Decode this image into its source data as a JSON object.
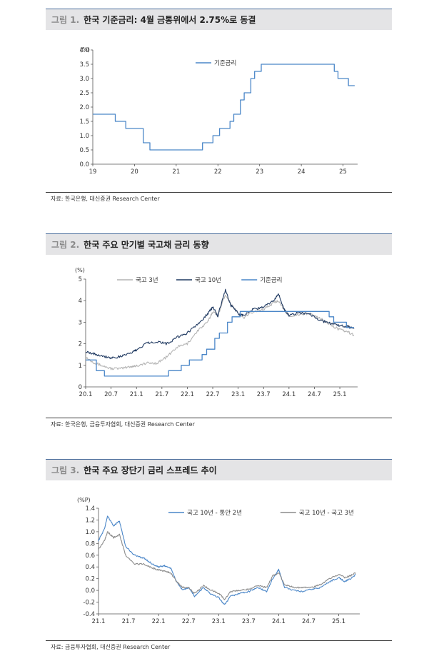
{
  "figures": [
    {
      "number": "그림 1.",
      "title": "한국 기준금리: 4월 금통위에서 2.75%로 동결",
      "source": "자료: 한국은행, 대신증권 Research Center"
    },
    {
      "number": "그림 2.",
      "title": "한국 주요 만기별 국고채 금리 동향",
      "source": "자료: 한국은행, 금융투자협회, 대신증권 Research Center"
    },
    {
      "number": "그림 3.",
      "title": "한국 주요 장단기 금리 스프레드 추이",
      "source": "자료: 금융투자협회, 대신증권 Research Center"
    }
  ],
  "chart_data": [
    {
      "type": "line",
      "unit": "(%)",
      "xlim": [
        19,
        25.35
      ],
      "ylim": [
        0,
        4
      ],
      "x_ticks": [
        "19",
        "20",
        "21",
        "22",
        "23",
        "24",
        "25"
      ],
      "y_ticks": [
        "0.0",
        "0.5",
        "1.0",
        "1.5",
        "2.0",
        "2.5",
        "3.0",
        "3.5",
        "4.0"
      ],
      "legend_position": "top-center",
      "series": [
        {
          "name": "기준금리",
          "color": "#4a86c8",
          "step": true,
          "points": [
            [
              19.0,
              1.75
            ],
            [
              19.54,
              1.5
            ],
            [
              19.79,
              1.25
            ],
            [
              20.21,
              0.75
            ],
            [
              20.37,
              0.5
            ],
            [
              21.63,
              0.75
            ],
            [
              21.88,
              1.0
            ],
            [
              22.04,
              1.25
            ],
            [
              22.29,
              1.5
            ],
            [
              22.38,
              1.75
            ],
            [
              22.54,
              2.25
            ],
            [
              22.63,
              2.5
            ],
            [
              22.79,
              3.0
            ],
            [
              22.88,
              3.25
            ],
            [
              23.04,
              3.5
            ],
            [
              24.79,
              3.25
            ],
            [
              24.88,
              3.0
            ],
            [
              25.13,
              2.75
            ],
            [
              25.28,
              2.75
            ]
          ]
        }
      ]
    },
    {
      "type": "line",
      "unit": "(%)",
      "xlim": [
        2020.0,
        2025.35
      ],
      "ylim": [
        0,
        5
      ],
      "x_ticks": [
        "20.1",
        "20.7",
        "21.1",
        "21.7",
        "22.1",
        "22.7",
        "23.1",
        "23.7",
        "24.1",
        "24.7",
        "25.1"
      ],
      "y_ticks": [
        "0",
        "1",
        "2",
        "3",
        "4",
        "5"
      ],
      "legend_position": "top",
      "series": [
        {
          "name": "국고 3년",
          "color": "#b4b4b4",
          "points": [
            [
              2020.0,
              1.38
            ],
            [
              2020.15,
              1.15
            ],
            [
              2020.3,
              1.0
            ],
            [
              2020.5,
              0.85
            ],
            [
              2020.7,
              0.85
            ],
            [
              2020.9,
              0.95
            ],
            [
              2021.0,
              0.98
            ],
            [
              2021.2,
              1.1
            ],
            [
              2021.4,
              1.1
            ],
            [
              2021.6,
              1.4
            ],
            [
              2021.8,
              1.85
            ],
            [
              2022.0,
              2.0
            ],
            [
              2022.2,
              2.6
            ],
            [
              2022.4,
              3.0
            ],
            [
              2022.5,
              3.5
            ],
            [
              2022.6,
              3.3
            ],
            [
              2022.75,
              4.3
            ],
            [
              2022.85,
              3.9
            ],
            [
              2023.0,
              3.4
            ],
            [
              2023.1,
              3.2
            ],
            [
              2023.3,
              3.5
            ],
            [
              2023.5,
              3.6
            ],
            [
              2023.7,
              3.9
            ],
            [
              2023.8,
              4.0
            ],
            [
              2023.9,
              3.6
            ],
            [
              2024.0,
              3.3
            ],
            [
              2024.2,
              3.35
            ],
            [
              2024.4,
              3.4
            ],
            [
              2024.6,
              3.2
            ],
            [
              2024.8,
              2.9
            ],
            [
              2025.0,
              2.65
            ],
            [
              2025.15,
              2.55
            ],
            [
              2025.28,
              2.4
            ]
          ]
        },
        {
          "name": "국고 10년",
          "color": "#1e3860",
          "points": [
            [
              2020.0,
              1.65
            ],
            [
              2020.15,
              1.55
            ],
            [
              2020.3,
              1.45
            ],
            [
              2020.5,
              1.35
            ],
            [
              2020.7,
              1.4
            ],
            [
              2020.9,
              1.6
            ],
            [
              2021.0,
              1.7
            ],
            [
              2021.2,
              2.05
            ],
            [
              2021.4,
              2.1
            ],
            [
              2021.6,
              2.0
            ],
            [
              2021.8,
              2.3
            ],
            [
              2022.0,
              2.5
            ],
            [
              2022.2,
              2.9
            ],
            [
              2022.4,
              3.4
            ],
            [
              2022.5,
              3.7
            ],
            [
              2022.6,
              3.3
            ],
            [
              2022.75,
              4.5
            ],
            [
              2022.85,
              3.8
            ],
            [
              2023.0,
              3.4
            ],
            [
              2023.1,
              3.3
            ],
            [
              2023.3,
              3.6
            ],
            [
              2023.5,
              3.7
            ],
            [
              2023.7,
              4.0
            ],
            [
              2023.8,
              4.3
            ],
            [
              2023.9,
              3.6
            ],
            [
              2024.0,
              3.3
            ],
            [
              2024.2,
              3.45
            ],
            [
              2024.4,
              3.4
            ],
            [
              2024.6,
              3.1
            ],
            [
              2024.8,
              2.95
            ],
            [
              2025.0,
              2.85
            ],
            [
              2025.15,
              2.8
            ],
            [
              2025.28,
              2.7
            ]
          ]
        },
        {
          "name": "기준금리",
          "color": "#4a86c8",
          "step": true,
          "points": [
            [
              2020.0,
              1.25
            ],
            [
              2020.21,
              0.75
            ],
            [
              2020.37,
              0.5
            ],
            [
              2021.63,
              0.75
            ],
            [
              2021.88,
              1.0
            ],
            [
              2022.04,
              1.25
            ],
            [
              2022.29,
              1.5
            ],
            [
              2022.38,
              1.75
            ],
            [
              2022.54,
              2.25
            ],
            [
              2022.63,
              2.5
            ],
            [
              2022.79,
              3.0
            ],
            [
              2022.88,
              3.25
            ],
            [
              2023.04,
              3.5
            ],
            [
              2024.79,
              3.25
            ],
            [
              2024.88,
              3.0
            ],
            [
              2025.13,
              2.75
            ],
            [
              2025.28,
              2.75
            ]
          ]
        }
      ]
    },
    {
      "type": "line",
      "unit": "(%P)",
      "xlim": [
        2021.0,
        2025.35
      ],
      "ylim": [
        -0.4,
        1.4
      ],
      "x_ticks": [
        "21.1",
        "21.7",
        "22.1",
        "22.7",
        "23.1",
        "23.7",
        "24.1",
        "24.7",
        "25.1"
      ],
      "y_ticks": [
        "-0.4",
        "-0.2",
        "0.0",
        "0.2",
        "0.4",
        "0.6",
        "0.8",
        "1.0",
        "1.2",
        "1.4"
      ],
      "legend_position": "top",
      "series": [
        {
          "name": "국고 10년 - 통안 2년",
          "color": "#4a86c8",
          "points": [
            [
              2021.0,
              0.85
            ],
            [
              2021.1,
              1.05
            ],
            [
              2021.15,
              1.27
            ],
            [
              2021.25,
              1.1
            ],
            [
              2021.35,
              1.18
            ],
            [
              2021.45,
              0.75
            ],
            [
              2021.6,
              0.6
            ],
            [
              2021.75,
              0.55
            ],
            [
              2021.9,
              0.45
            ],
            [
              2022.0,
              0.4
            ],
            [
              2022.1,
              0.42
            ],
            [
              2022.2,
              0.38
            ],
            [
              2022.3,
              0.15
            ],
            [
              2022.4,
              0.0
            ],
            [
              2022.5,
              0.05
            ],
            [
              2022.6,
              -0.1
            ],
            [
              2022.75,
              0.05
            ],
            [
              2022.85,
              -0.05
            ],
            [
              2023.0,
              -0.12
            ],
            [
              2023.1,
              -0.25
            ],
            [
              2023.2,
              -0.1
            ],
            [
              2023.35,
              -0.05
            ],
            [
              2023.5,
              -0.02
            ],
            [
              2023.65,
              0.05
            ],
            [
              2023.8,
              -0.02
            ],
            [
              2023.9,
              0.2
            ],
            [
              2024.0,
              0.35
            ],
            [
              2024.1,
              0.05
            ],
            [
              2024.25,
              0.0
            ],
            [
              2024.4,
              -0.02
            ],
            [
              2024.55,
              0.02
            ],
            [
              2024.7,
              0.05
            ],
            [
              2024.85,
              0.15
            ],
            [
              2025.0,
              0.22
            ],
            [
              2025.1,
              0.15
            ],
            [
              2025.2,
              0.2
            ],
            [
              2025.28,
              0.27
            ]
          ]
        },
        {
          "name": "국고 10년 - 국고 3년",
          "color": "#8c8c8c",
          "points": [
            [
              2021.0,
              0.7
            ],
            [
              2021.1,
              0.85
            ],
            [
              2021.15,
              1.0
            ],
            [
              2021.25,
              0.9
            ],
            [
              2021.35,
              0.95
            ],
            [
              2021.45,
              0.6
            ],
            [
              2021.6,
              0.45
            ],
            [
              2021.75,
              0.45
            ],
            [
              2021.9,
              0.38
            ],
            [
              2022.0,
              0.35
            ],
            [
              2022.1,
              0.33
            ],
            [
              2022.2,
              0.3
            ],
            [
              2022.3,
              0.15
            ],
            [
              2022.4,
              0.05
            ],
            [
              2022.5,
              0.05
            ],
            [
              2022.6,
              -0.05
            ],
            [
              2022.75,
              0.08
            ],
            [
              2022.85,
              0.02
            ],
            [
              2023.0,
              -0.05
            ],
            [
              2023.1,
              -0.15
            ],
            [
              2023.2,
              -0.02
            ],
            [
              2023.35,
              0.0
            ],
            [
              2023.5,
              0.02
            ],
            [
              2023.65,
              0.08
            ],
            [
              2023.8,
              0.05
            ],
            [
              2023.9,
              0.25
            ],
            [
              2024.0,
              0.3
            ],
            [
              2024.1,
              0.1
            ],
            [
              2024.25,
              0.05
            ],
            [
              2024.4,
              0.05
            ],
            [
              2024.55,
              0.05
            ],
            [
              2024.7,
              0.1
            ],
            [
              2024.85,
              0.2
            ],
            [
              2025.0,
              0.27
            ],
            [
              2025.1,
              0.22
            ],
            [
              2025.2,
              0.25
            ],
            [
              2025.28,
              0.3
            ]
          ]
        }
      ]
    }
  ]
}
